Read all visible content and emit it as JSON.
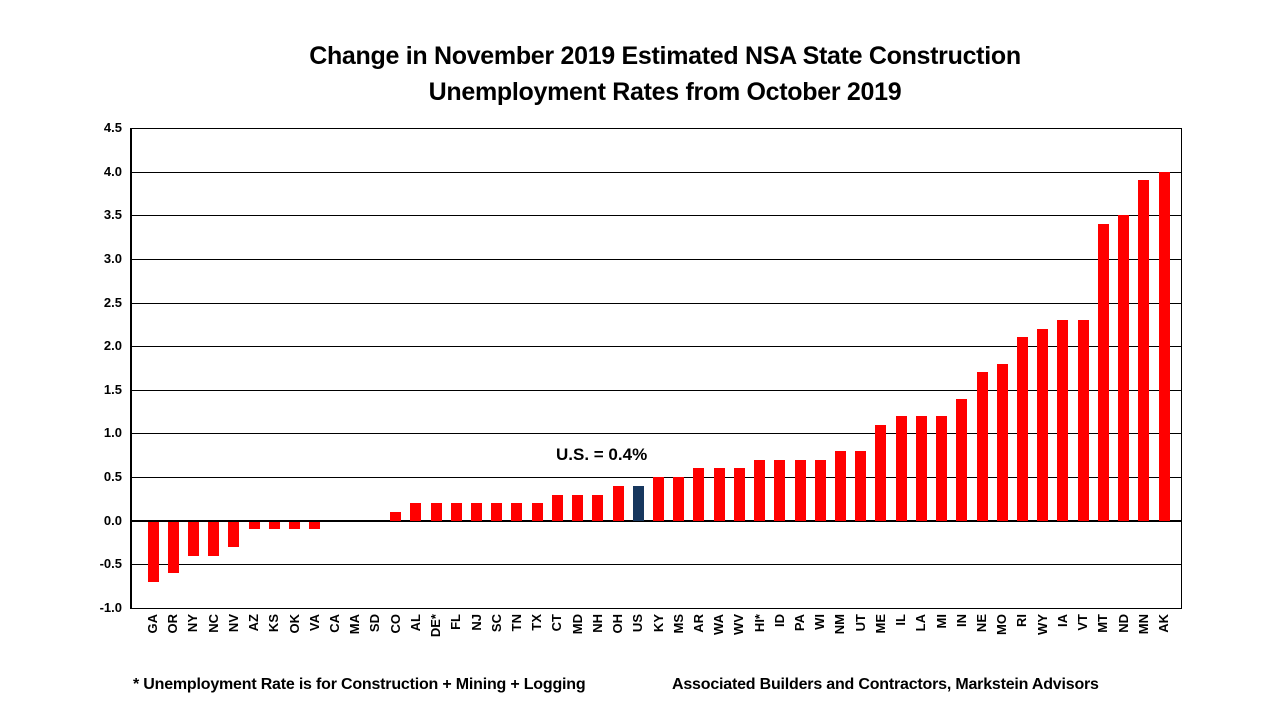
{
  "title": {
    "line1": "Change in November 2019 Estimated NSA State Construction",
    "line2": "Unemployment Rates from October 2019"
  },
  "annotation": {
    "label": "U.S. = 0.4%"
  },
  "footnotes": {
    "left": "* Unemployment Rate is for Construction + Mining + Logging",
    "right": "Associated Builders and Contractors, Markstein Advisors"
  },
  "colors": {
    "bar": "#FF0000",
    "highlight_bar": "#17375E",
    "axis": "#000000",
    "background": "#FFFFFF",
    "text": "#000000"
  },
  "chart_data": {
    "type": "bar",
    "title": "Change in November 2019 Estimated NSA State Construction Unemployment Rates from October 2019",
    "xlabel": "",
    "ylabel": "",
    "ylim": [
      -1.0,
      4.5
    ],
    "ytick_step": 0.5,
    "ytick_labels": [
      "4.5",
      "4.0",
      "3.5",
      "3.0",
      "2.5",
      "2.0",
      "1.5",
      "1.0",
      "0.5",
      "0.0",
      "-0.5",
      "-1.0"
    ],
    "grid": true,
    "legend": "none",
    "annotation": "U.S. = 0.4%",
    "highlight_category": "US",
    "categories": [
      "GA",
      "OR",
      "NY",
      "NC",
      "NV",
      "AZ",
      "KS",
      "OK",
      "VA",
      "CA",
      "MA",
      "SD",
      "CO",
      "AL",
      "DE*",
      "FL",
      "NJ",
      "SC",
      "TN",
      "TX",
      "CT",
      "MD",
      "NH",
      "OH",
      "US",
      "KY",
      "MS",
      "AR",
      "WA",
      "WV",
      "HI*",
      "ID",
      "PA",
      "WI",
      "NM",
      "UT",
      "ME",
      "IL",
      "LA",
      "MI",
      "IN",
      "NE",
      "MO",
      "RI",
      "WY",
      "IA",
      "VT",
      "MT",
      "ND",
      "MN",
      "AK"
    ],
    "values": [
      -0.7,
      -0.6,
      -0.4,
      -0.4,
      -0.3,
      -0.1,
      -0.1,
      -0.1,
      -0.1,
      0.0,
      0.0,
      0.0,
      0.1,
      0.2,
      0.2,
      0.2,
      0.2,
      0.2,
      0.2,
      0.2,
      0.3,
      0.3,
      0.3,
      0.4,
      0.4,
      0.5,
      0.5,
      0.6,
      0.6,
      0.6,
      0.7,
      0.7,
      0.7,
      0.7,
      0.8,
      0.8,
      1.1,
      1.2,
      1.2,
      1.2,
      1.4,
      1.7,
      1.8,
      2.1,
      2.2,
      2.3,
      2.3,
      3.4,
      3.5,
      3.9,
      4.0
    ]
  }
}
